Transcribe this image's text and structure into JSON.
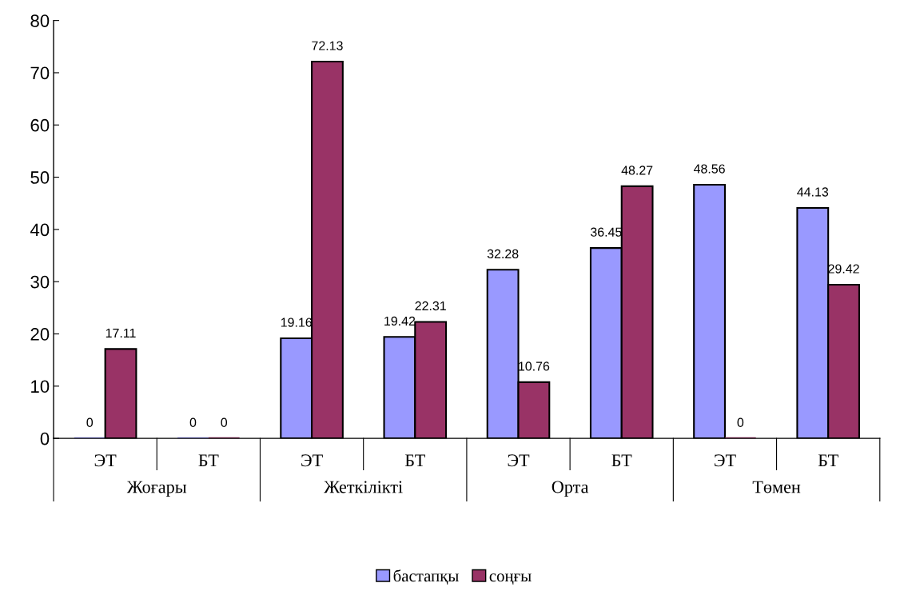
{
  "chart_data": {
    "type": "bar",
    "categories": [
      "ЭТ",
      "БТ",
      "ЭТ",
      "БТ",
      "ЭТ",
      "БТ",
      "ЭТ",
      "БТ"
    ],
    "series": [
      {
        "name": "бастапқы",
        "color": "#9999ff",
        "values": [
          0,
          0,
          19.16,
          19.42,
          32.28,
          36.45,
          48.56,
          44.13
        ]
      },
      {
        "name": "соңғы",
        "color": "#993366",
        "values": [
          17.11,
          0,
          72.13,
          22.31,
          10.76,
          48.27,
          0,
          29.42
        ]
      }
    ],
    "annotations": [
      "Жоғары",
      "Жеткілікті",
      "Орта",
      "Төмен"
    ],
    "ylim": [
      0,
      80
    ],
    "yticks": [
      0,
      10,
      20,
      30,
      40,
      50,
      60,
      70,
      80
    ],
    "grid": false,
    "legend": "bottom",
    "data_labels": true
  }
}
